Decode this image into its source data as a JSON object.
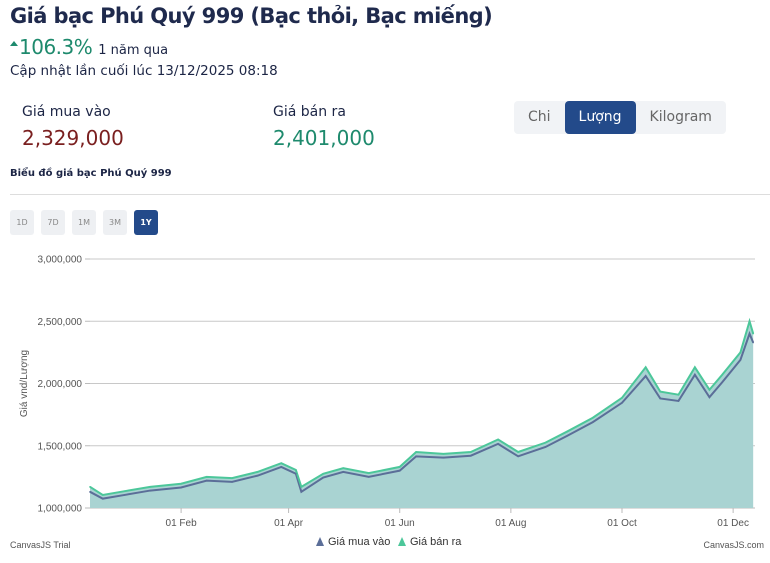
{
  "header": {
    "title": "Giá bạc Phú Quý 999 (Bạc thỏi, Bạc miếng)",
    "change_pct": "106.3%",
    "change_period": "1 năm qua",
    "updated": "Cập nhật lần cuối lúc 13/12/2025 08:18"
  },
  "prices": {
    "buy_label": "Giá mua vào",
    "buy_value": "2,329,000",
    "sell_label": "Giá bán ra",
    "sell_value": "2,401,000"
  },
  "units": [
    {
      "label": "Chi",
      "active": false
    },
    {
      "label": "Lượng",
      "active": true
    },
    {
      "label": "Kilogram",
      "active": false
    }
  ],
  "chart_subtitle": "Biểu đồ giá bạc Phú Quý 999",
  "ranges": [
    {
      "label": "1D",
      "active": false
    },
    {
      "label": "7D",
      "active": false
    },
    {
      "label": "1M",
      "active": false
    },
    {
      "label": "3M",
      "active": false
    },
    {
      "label": "1Y",
      "active": true
    }
  ],
  "colors": {
    "buy": "#5b6e98",
    "sell": "#4cc79a",
    "fill": "#a9d3d2",
    "active": "#234a8a"
  },
  "chart_data": {
    "type": "area",
    "ylabel": "Giá vnd/Lượng",
    "ylim": [
      1000000,
      3000000
    ],
    "yticks": [
      "1,000,000",
      "1,500,000",
      "2,000,000",
      "2,500,000",
      "3,000,000"
    ],
    "ytick_values": [
      1000000,
      1500000,
      2000000,
      2500000,
      3000000
    ],
    "xlim": [
      "2024-12-13",
      "2025-12-13"
    ],
    "xticks": [
      {
        "date": "2025-02-01",
        "label": "01 Feb"
      },
      {
        "date": "2025-04-01",
        "label": "01 Apr"
      },
      {
        "date": "2025-06-01",
        "label": "01 Jun"
      },
      {
        "date": "2025-08-01",
        "label": "01 Aug"
      },
      {
        "date": "2025-10-01",
        "label": "01 Oct"
      },
      {
        "date": "2025-12-01",
        "label": "01 Dec"
      }
    ],
    "legend": {
      "position": "bottom",
      "items": [
        "Giá mua vào",
        "Giá bán ra"
      ]
    },
    "x": [
      "2024-12-13",
      "2024-12-20",
      "2025-01-01",
      "2025-01-15",
      "2025-02-01",
      "2025-02-15",
      "2025-03-01",
      "2025-03-15",
      "2025-03-28",
      "2025-04-05",
      "2025-04-08",
      "2025-04-20",
      "2025-05-01",
      "2025-05-15",
      "2025-06-01",
      "2025-06-10",
      "2025-06-25",
      "2025-07-10",
      "2025-07-25",
      "2025-08-05",
      "2025-08-20",
      "2025-09-01",
      "2025-09-15",
      "2025-10-01",
      "2025-10-14",
      "2025-10-22",
      "2025-11-01",
      "2025-11-10",
      "2025-11-18",
      "2025-11-25",
      "2025-12-05",
      "2025-12-10",
      "2025-12-12"
    ],
    "series": [
      {
        "name": "Giá mua vào",
        "values": [
          1130000,
          1075000,
          1105000,
          1140000,
          1165000,
          1220000,
          1210000,
          1260000,
          1330000,
          1275000,
          1130000,
          1245000,
          1290000,
          1250000,
          1300000,
          1415000,
          1405000,
          1420000,
          1515000,
          1415000,
          1490000,
          1580000,
          1690000,
          1845000,
          2060000,
          1880000,
          1860000,
          2070000,
          1890000,
          2010000,
          2190000,
          2400000,
          2329000
        ]
      },
      {
        "name": "Giá bán ra",
        "values": [
          1170000,
          1105000,
          1135000,
          1170000,
          1195000,
          1250000,
          1240000,
          1290000,
          1360000,
          1305000,
          1170000,
          1275000,
          1320000,
          1280000,
          1330000,
          1450000,
          1435000,
          1450000,
          1550000,
          1450000,
          1525000,
          1615000,
          1725000,
          1885000,
          2130000,
          1935000,
          1910000,
          2130000,
          1950000,
          2070000,
          2250000,
          2500000,
          2401000
        ]
      }
    ]
  },
  "credits": {
    "left": "CanvasJS Trial",
    "right": "CanvasJS.com"
  }
}
